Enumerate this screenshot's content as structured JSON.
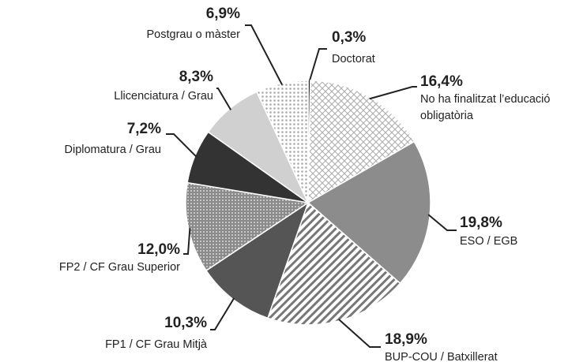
{
  "chart_data": {
    "type": "pie",
    "categories": [
      "Doctorat",
      "No ha finalitzat l’educació obligatòria",
      "ESO / EGB",
      "BUP-COU / Batxillerat",
      "FP1 / CF Grau Mitjà",
      "FP2 / CF Grau Superior",
      "Diplomatura / Grau",
      "Llicenciatura / Grau",
      "Postgrau o màster"
    ],
    "values": [
      0.3,
      16.4,
      19.8,
      18.9,
      10.3,
      12.0,
      7.2,
      8.3,
      6.9
    ],
    "value_labels": [
      "0,3%",
      "16,4%",
      "19,8%",
      "18,9%",
      "10,3%",
      "12,0%",
      "7,2%",
      "8,3%",
      "6,9%"
    ],
    "colors": [
      "#1a1a1a",
      "#ffffff",
      "#8c8c8c",
      "#ffffff",
      "#555555",
      "#a6a6a6",
      "#333333",
      "#d0d0d0",
      "#f2f2f2"
    ],
    "patterns": [
      "none",
      "crosshatch",
      "none",
      "stripes",
      "none",
      "dots-dark",
      "none",
      "none",
      "dots-light"
    ]
  }
}
